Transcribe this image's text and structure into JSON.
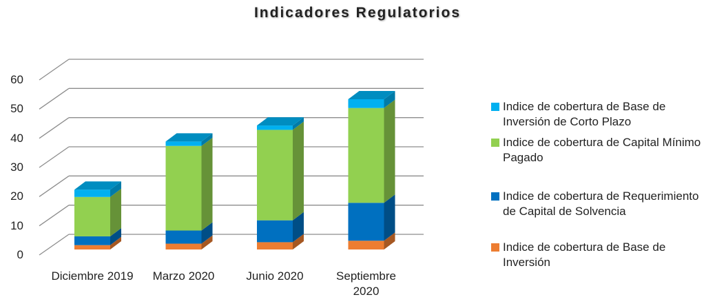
{
  "chart_data": {
    "type": "bar3d_stacked",
    "title": "Indicadores Regulatorios",
    "categories": [
      "Diciembre 2019",
      "Marzo 2020",
      "Junio 2020",
      "Septiembre 2020"
    ],
    "series": [
      {
        "name": "Indice de cobertura de Base de Inversión",
        "color": "#ed7d31",
        "values": [
          1.5,
          2,
          2.5,
          3
        ]
      },
      {
        "name": "Indice de cobertura de Requerimiento de Capital de Solvencia",
        "color": "#0070c0",
        "values": [
          3,
          4.5,
          7.5,
          13
        ]
      },
      {
        "name": "Indice de cobertura de Capital Mínimo Pagado",
        "color": "#92d050",
        "values": [
          13.5,
          29,
          31,
          32.5
        ]
      },
      {
        "name": "Indice de cobertura de Base de Inversión de Corto Plazo",
        "color": "#00b0f0",
        "values": [
          2.5,
          1.5,
          1.5,
          3
        ]
      }
    ],
    "ylim": [
      0,
      60
    ],
    "yticks": [
      0,
      10,
      20,
      30,
      40,
      50,
      60
    ],
    "grid": true,
    "legend": "right"
  }
}
